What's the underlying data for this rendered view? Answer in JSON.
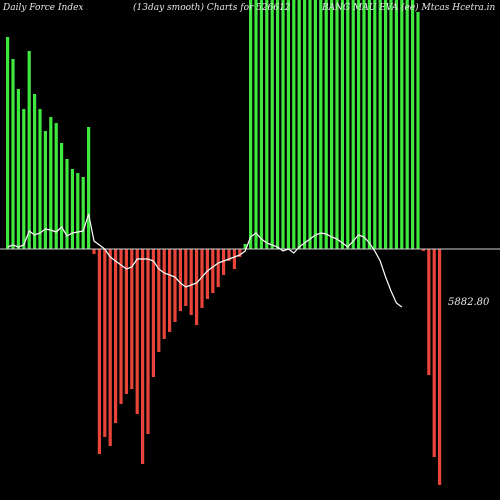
{
  "header": {
    "left": "Daily Force  Index",
    "center": "(13day smooth) Charts for 526612",
    "right": "BANG MAU EVA (ee) Mtcas Hcetra.in"
  },
  "last_value_label": "5882.80",
  "colors": {
    "positive": "#3ee83e",
    "negative": "#e8443a",
    "line": "#ffffff",
    "zero": "#cfcfcf",
    "background": "#000000"
  },
  "chart_data": {
    "type": "bar",
    "title": "Daily Force Index",
    "subtitle": "(13day smooth) Charts for 526612",
    "xlabel": "",
    "ylabel": "",
    "ylim": [
      -232,
      252
    ],
    "grid": false,
    "series": [
      {
        "values": [
          212,
          190,
          160,
          140,
          198,
          155,
          140,
          118,
          132,
          126,
          106,
          90,
          80,
          76,
          72,
          122,
          -5,
          -205,
          -188,
          -197,
          -174,
          -155,
          -145,
          -140,
          -165,
          -215,
          -185,
          -128,
          -103,
          -90,
          -83,
          -73,
          -62,
          -57,
          -66,
          -76,
          -59,
          -50,
          -44,
          -38,
          -26,
          -12,
          -20,
          -8,
          5,
          255,
          255,
          255,
          255,
          255,
          255,
          255,
          255,
          255,
          255,
          255,
          255,
          255,
          255,
          255,
          255,
          255,
          255,
          255,
          255,
          255,
          255,
          255,
          255,
          255,
          255,
          255,
          255,
          255,
          255,
          255,
          237,
          -2,
          -126,
          -208,
          -236
        ]
      },
      {
        "name": "13day smooth",
        "values": [
          2,
          4,
          2,
          4,
          18,
          14,
          16,
          20,
          19,
          17,
          22,
          13,
          16,
          17,
          18,
          35,
          8,
          4,
          0,
          -8,
          -12,
          -16,
          -20,
          -18,
          -10,
          -10,
          -10,
          -12,
          -20,
          -24,
          -26,
          -28,
          -34,
          -38,
          -36,
          -34,
          -28,
          -22,
          -18,
          -14,
          -12,
          -10,
          -8,
          -6,
          -2,
          12,
          16,
          10,
          6,
          4,
          2,
          -2,
          0,
          -4,
          2,
          6,
          10,
          14,
          16,
          15,
          12,
          10,
          6,
          2,
          8,
          14,
          12,
          6,
          -2,
          -12,
          -28,
          -42,
          -54,
          -58
        ],
        "last": 5882.8
      }
    ]
  }
}
